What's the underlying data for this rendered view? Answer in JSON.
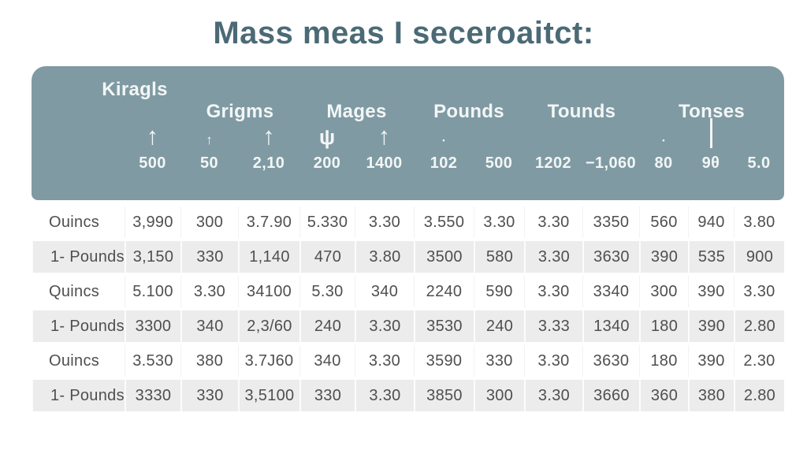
{
  "title": "Mass meas I seceroaitct:",
  "colors": {
    "background": "#ffffff",
    "title": "#4b6a76",
    "band": "#7f9aa3",
    "band_text": "#f3f6f6",
    "row_alt": "#ececec",
    "text": "#4f4f4f"
  },
  "chart_data": {
    "type": "table",
    "title": "Mass meas I seceroaitct:",
    "column_groups": [
      "Kiragls",
      "Grigms",
      "Mages",
      "Pounds",
      "Tounds",
      "Tonses"
    ],
    "header_symbols": [
      "arrow-up",
      "arrow-up-small",
      "arrow-up",
      "arrow-down-psi",
      "arrow-up",
      "dot",
      "none",
      "none",
      "none",
      "dot",
      "bar",
      "none"
    ],
    "header_values": [
      "500",
      "50",
      "2,10",
      "200",
      "1400",
      "102",
      "500",
      "1202",
      "−1,060",
      "80",
      "9θ",
      "5.0"
    ],
    "rows": [
      {
        "label": "Ouincs",
        "values": [
          "3,990",
          "300",
          "3.7.90",
          "5.330",
          "3.30",
          "3.550",
          "3.30",
          "3.30",
          "3350",
          "560",
          "940",
          "3.80"
        ]
      },
      {
        "label": "1- Pounds",
        "values": [
          "3,150",
          "330",
          "1,140",
          "470",
          "3.80",
          "3500",
          "580",
          "3.30",
          "3630",
          "390",
          "535",
          "900"
        ]
      },
      {
        "label": "Quincs",
        "values": [
          "5.100",
          "3.30",
          "34100",
          "5.30",
          "340",
          "2240",
          "590",
          "3.30",
          "3340",
          "300",
          "390",
          "3.30"
        ]
      },
      {
        "label": "1- Pounds",
        "values": [
          "3300",
          "340",
          "2,3/60",
          "240",
          "3.30",
          "3530",
          "240",
          "3.33",
          "1340",
          "180",
          "390",
          "2.80"
        ]
      },
      {
        "label": "Ouincs",
        "values": [
          "3.530",
          "380",
          "3.7J60",
          "340",
          "3.30",
          "3590",
          "330",
          "3.30",
          "3630",
          "180",
          "390",
          "2.30"
        ]
      },
      {
        "label": "1- Pounds",
        "values": [
          "3330",
          "330",
          "3,5100",
          "330",
          "3.30",
          "3850",
          "300",
          "3.30",
          "3660",
          "360",
          "380",
          "2.80"
        ]
      }
    ]
  }
}
